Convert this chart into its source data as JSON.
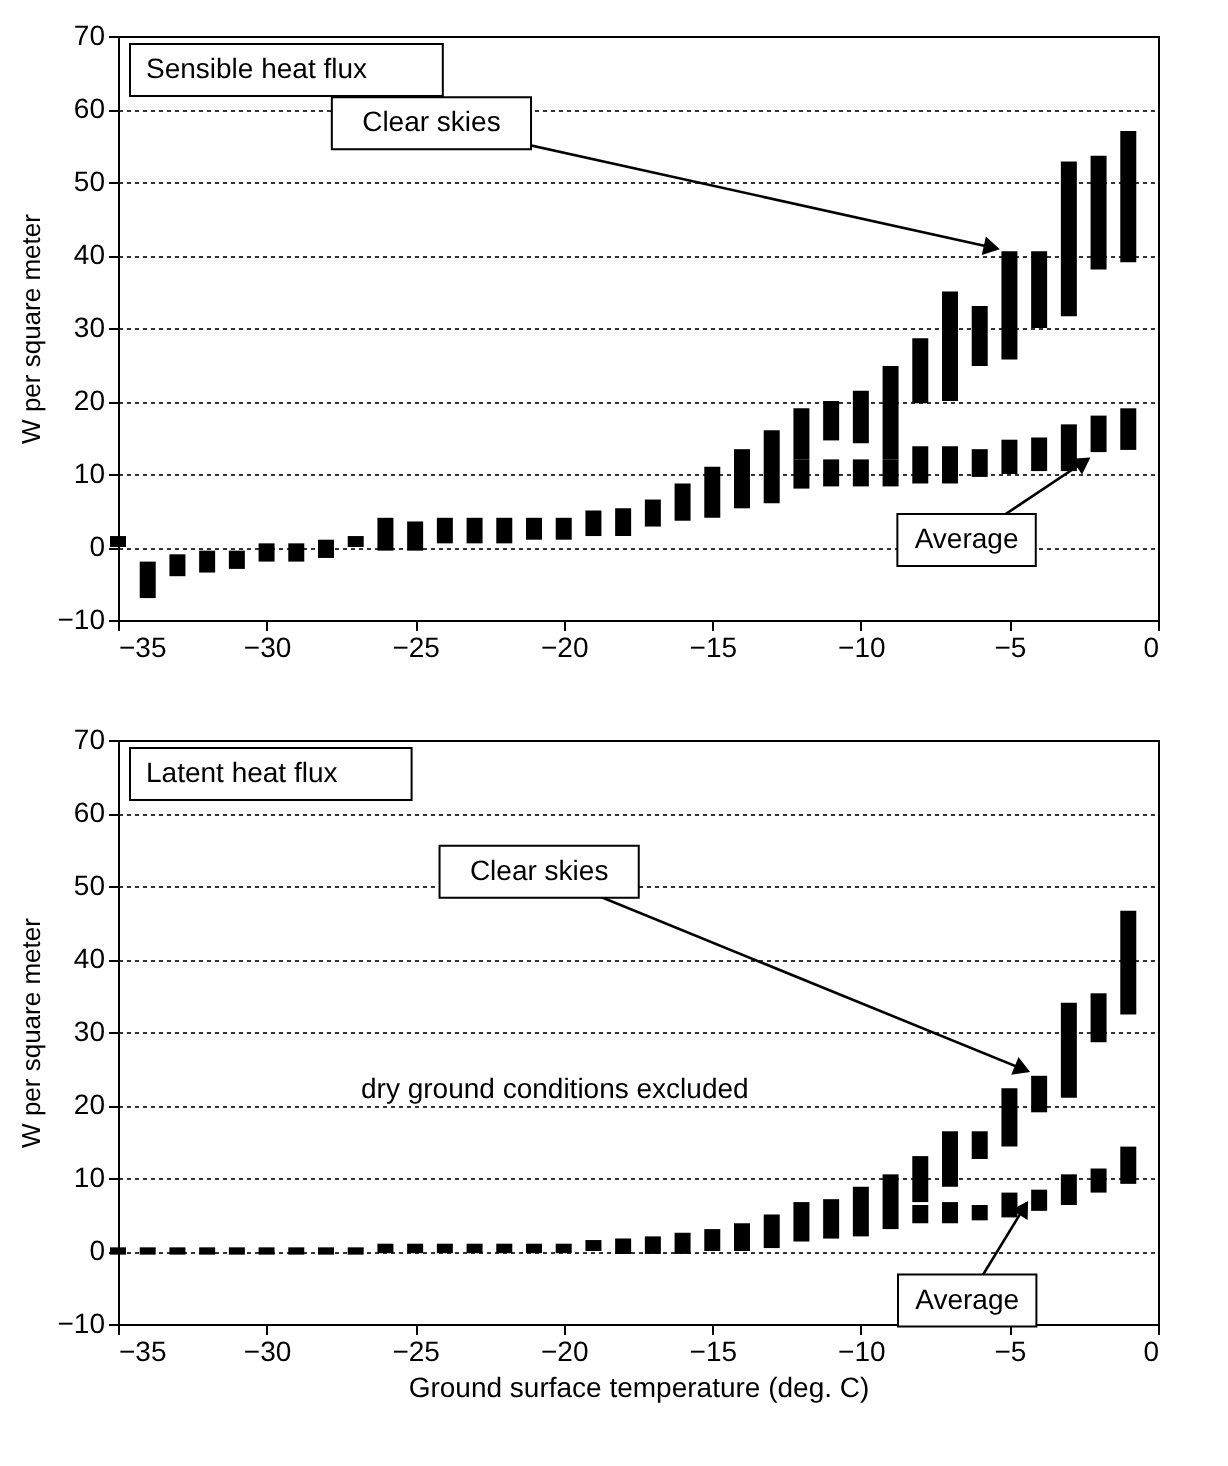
{
  "chart_data": [
    {
      "type": "bar",
      "title": "Sensible heat flux",
      "ylabel": "W per square meter",
      "xlim": [
        -35,
        0
      ],
      "xticks": [
        -35,
        -30,
        -25,
        -20,
        -15,
        -10,
        -5,
        0
      ],
      "ylim": [
        -10,
        70
      ],
      "yticks": [
        -10,
        0,
        10,
        20,
        30,
        40,
        50,
        60,
        70
      ],
      "grid": "y",
      "series": [
        {
          "color": "#000000",
          "x": [
            -35,
            -34,
            -33,
            -32,
            -31,
            -30,
            -29,
            -28,
            -27,
            -26,
            -25,
            -24,
            -23,
            -22,
            -21,
            -20,
            -19,
            -18,
            -17,
            -16,
            -15,
            -14,
            -13,
            -12,
            -11,
            -10,
            -9,
            -8,
            -7,
            -6,
            -5,
            -4,
            -3,
            -2,
            -1
          ],
          "base": [
            0,
            -7,
            -4,
            -3.5,
            -3,
            -2,
            -2,
            -1.5,
            0,
            -0.5,
            -0.5,
            0.5,
            0.5,
            0.5,
            1,
            1,
            1.5,
            1.5,
            2.8,
            3.6,
            4,
            5.3,
            6,
            8,
            8.3,
            8.3,
            8.3,
            8.7,
            8.7,
            9.6,
            10,
            10.4,
            10.4,
            13,
            13.3
          ],
          "values": [
            1.5,
            5,
            3,
            3,
            2.5,
            2.5,
            2.5,
            2.5,
            1.5,
            4.5,
            4,
            3.5,
            3.5,
            3.5,
            3,
            3,
            3.5,
            3.8,
            3.7,
            5.1,
            7,
            8.1,
            10,
            4,
            3.7,
            3.7,
            3.7,
            5.1,
            5.1,
            3.8,
            4.7,
            4.6,
            6.4,
            5,
            5.7
          ]
        },
        {
          "color": "#000000",
          "x": [
            -12,
            -11,
            -10,
            -9,
            -8,
            -7,
            -6,
            -5,
            -4,
            -3,
            -2,
            -1
          ],
          "base": [
            12,
            14.6,
            14.2,
            12,
            19.7,
            20,
            24.8,
            25.7,
            30,
            31.6,
            38,
            39
          ],
          "values": [
            7,
            5.4,
            7.2,
            12.8,
            8.9,
            15,
            8.2,
            14.8,
            10.5,
            21.2,
            15.6,
            18
          ]
        }
      ],
      "annotations": [
        {
          "text": "Clear skies",
          "x": -5,
          "y": 40.5
        },
        {
          "text": "Average",
          "x": -2,
          "y": 13
        }
      ]
    },
    {
      "type": "bar",
      "title": "Latent heat flux",
      "xlabel": "Ground surface temperature (deg. C)",
      "ylabel": "W per square meter",
      "xlim": [
        -35,
        0
      ],
      "xticks": [
        -35,
        -30,
        -25,
        -20,
        -15,
        -10,
        -5,
        0
      ],
      "ylim": [
        -10,
        70
      ],
      "yticks": [
        -10,
        0,
        10,
        20,
        30,
        40,
        50,
        60,
        70
      ],
      "grid": "y",
      "series": [
        {
          "color": "#000000",
          "x": [
            -35,
            -34,
            -33,
            -32,
            -31,
            -30,
            -29,
            -28,
            -27,
            -26,
            -25,
            -24,
            -23,
            -22,
            -21,
            -20,
            -19,
            -18,
            -17,
            -16,
            -15,
            -14,
            -13,
            -12,
            -11,
            -10,
            -9,
            -8,
            -7,
            -6,
            -5,
            -4,
            -3,
            -2,
            -1
          ],
          "base": [
            -0.5,
            -0.5,
            -0.5,
            -0.5,
            -0.5,
            -0.5,
            -0.5,
            -0.5,
            -0.5,
            -0.3,
            -0.3,
            -0.3,
            -0.3,
            -0.3,
            -0.3,
            -0.3,
            0,
            -0.4,
            -0.4,
            -0.4,
            0,
            0,
            0.4,
            1.3,
            1.7,
            2,
            3,
            3.8,
            3.8,
            4.2,
            4.6,
            5.5,
            6.3,
            8,
            9.2
          ],
          "values": [
            1,
            1,
            1,
            1,
            1,
            1,
            1,
            1,
            1,
            1.3,
            1.3,
            1.3,
            1.3,
            1.3,
            1.3,
            1.3,
            1.5,
            2.1,
            2.4,
            2.9,
            3,
            3.8,
            4.6,
            5.4,
            5.4,
            6.8,
            3.3,
            2.5,
            2.9,
            2.1,
            3.4,
            2.9,
            4.2,
            3.3,
            5.1
          ]
        },
        {
          "color": "#000000",
          "x": [
            -9,
            -8,
            -7,
            -6,
            -5,
            -4,
            -3,
            -2,
            -1
          ],
          "base": [
            6.3,
            6.7,
            8.8,
            12.6,
            14.3,
            19,
            21,
            28.6,
            32.4
          ],
          "values": [
            4.2,
            6.3,
            7.6,
            3.8,
            8,
            5,
            13,
            6.7,
            14.2
          ]
        }
      ],
      "annotations": [
        {
          "text": "Clear skies",
          "x": -4,
          "y": 24
        },
        "dry ground conditions excluded",
        {
          "text": "Average",
          "x": -4.2,
          "y": 8
        }
      ]
    }
  ]
}
